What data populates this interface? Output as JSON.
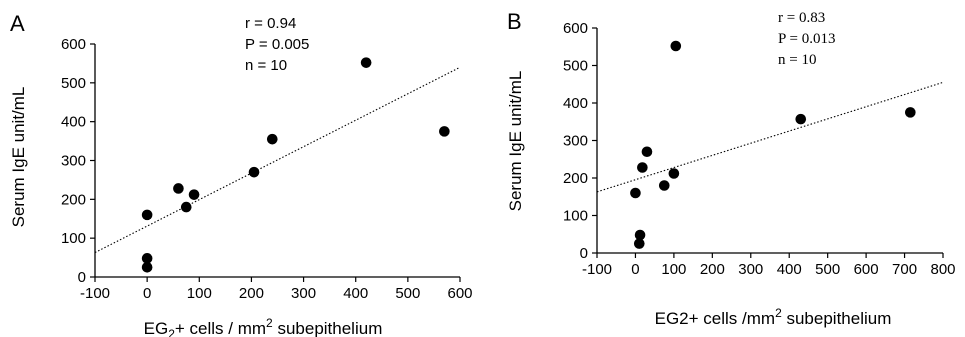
{
  "chart_data": [
    {
      "type": "scatter",
      "panel_label": "A",
      "xlabel_parts": [
        "EG",
        "2",
        "+ cells / mm",
        "2",
        " subepithelium"
      ],
      "ylabel": "Serum IgE unit/mL",
      "xlim": [
        -100,
        600
      ],
      "ylim": [
        0,
        600
      ],
      "xticks": [
        -100,
        0,
        100,
        200,
        300,
        400,
        500,
        600
      ],
      "yticks": [
        0,
        100,
        200,
        300,
        400,
        500,
        600
      ],
      "points": [
        {
          "x": 0,
          "y": 25
        },
        {
          "x": 0,
          "y": 48
        },
        {
          "x": 0,
          "y": 160
        },
        {
          "x": 60,
          "y": 228
        },
        {
          "x": 75,
          "y": 180
        },
        {
          "x": 90,
          "y": 212
        },
        {
          "x": 205,
          "y": 270
        },
        {
          "x": 240,
          "y": 355
        },
        {
          "x": 420,
          "y": 552
        },
        {
          "x": 570,
          "y": 375
        }
      ],
      "trendline": {
        "x1": -100,
        "y1": 63,
        "x2": 600,
        "y2": 540
      },
      "stats": [
        "r = 0.94",
        "P = 0.005",
        "n = 10"
      ]
    },
    {
      "type": "scatter",
      "panel_label": "B",
      "xlabel_parts": [
        "EG2+ cells /mm",
        "2",
        " subepithelium"
      ],
      "ylabel": "Serum IgE unit/mL",
      "xlim": [
        -100,
        800
      ],
      "ylim": [
        0,
        600
      ],
      "xticks": [
        -100,
        0,
        100,
        200,
        300,
        400,
        500,
        600,
        700,
        800
      ],
      "yticks": [
        0,
        100,
        200,
        300,
        400,
        500,
        600
      ],
      "points": [
        {
          "x": 0,
          "y": 160
        },
        {
          "x": 10,
          "y": 25
        },
        {
          "x": 12,
          "y": 48
        },
        {
          "x": 18,
          "y": 228
        },
        {
          "x": 30,
          "y": 270
        },
        {
          "x": 75,
          "y": 180
        },
        {
          "x": 100,
          "y": 212
        },
        {
          "x": 105,
          "y": 552
        },
        {
          "x": 430,
          "y": 357
        },
        {
          "x": 715,
          "y": 375
        }
      ],
      "trendline": {
        "x1": -100,
        "y1": 163,
        "x2": 800,
        "y2": 455
      },
      "stats": [
        "r = 0.83",
        "P = 0.013",
        "n = 10"
      ]
    }
  ]
}
